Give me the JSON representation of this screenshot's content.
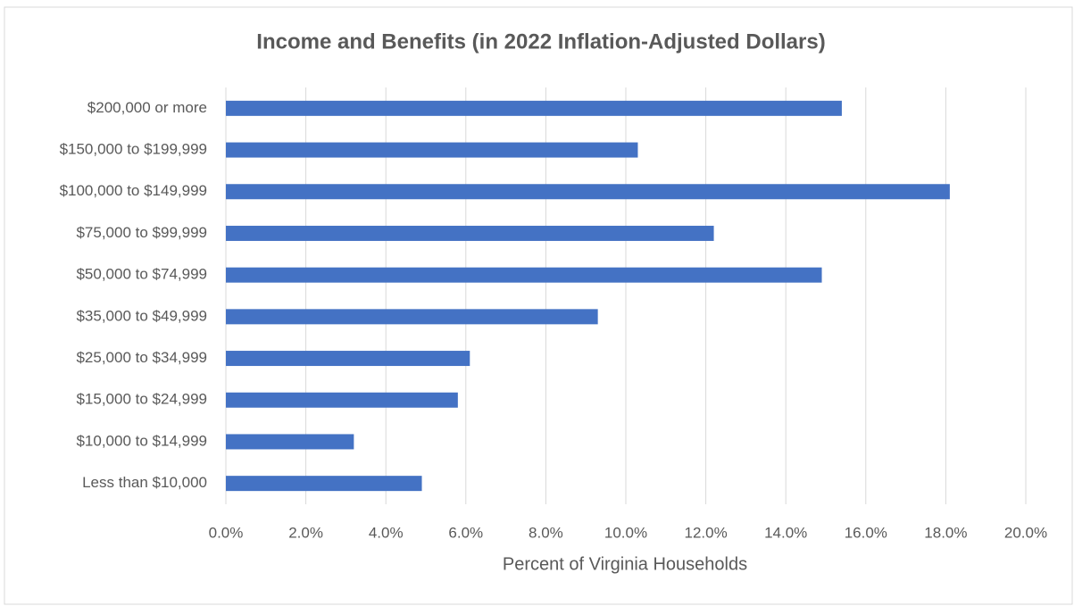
{
  "chart_data": {
    "type": "bar",
    "orientation": "horizontal",
    "title": "Income and Benefits (in 2022 Inflation-Adjusted Dollars)",
    "x_label": "Percent of Virginia Households",
    "categories": [
      "$200,000 or more",
      "$150,000 to $199,999",
      "$100,000 to $149,999",
      "$75,000 to $99,999",
      "$50,000 to $74,999",
      "$35,000 to $49,999",
      "$25,000 to $34,999",
      "$15,000 to $24,999",
      "$10,000 to $14,999",
      "Less than $10,000"
    ],
    "values": [
      15.4,
      10.3,
      18.1,
      12.2,
      14.9,
      9.3,
      6.1,
      5.8,
      3.2,
      4.9
    ],
    "color": "#4472c4",
    "xlim": [
      0,
      20
    ],
    "xticks": [
      {
        "value": 0,
        "label": "0.0%"
      },
      {
        "value": 2,
        "label": "2.0%"
      },
      {
        "value": 4,
        "label": "4.0%"
      },
      {
        "value": 6,
        "label": "6.0%"
      },
      {
        "value": 8,
        "label": "8.0%"
      },
      {
        "value": 10,
        "label": "10.0%"
      },
      {
        "value": 12,
        "label": "12.0%"
      },
      {
        "value": 14,
        "label": "14.0%"
      },
      {
        "value": 16,
        "label": "16.0%"
      },
      {
        "value": 18,
        "label": "18.0%"
      },
      {
        "value": 20,
        "label": "20.0%"
      }
    ],
    "grid": true
  }
}
